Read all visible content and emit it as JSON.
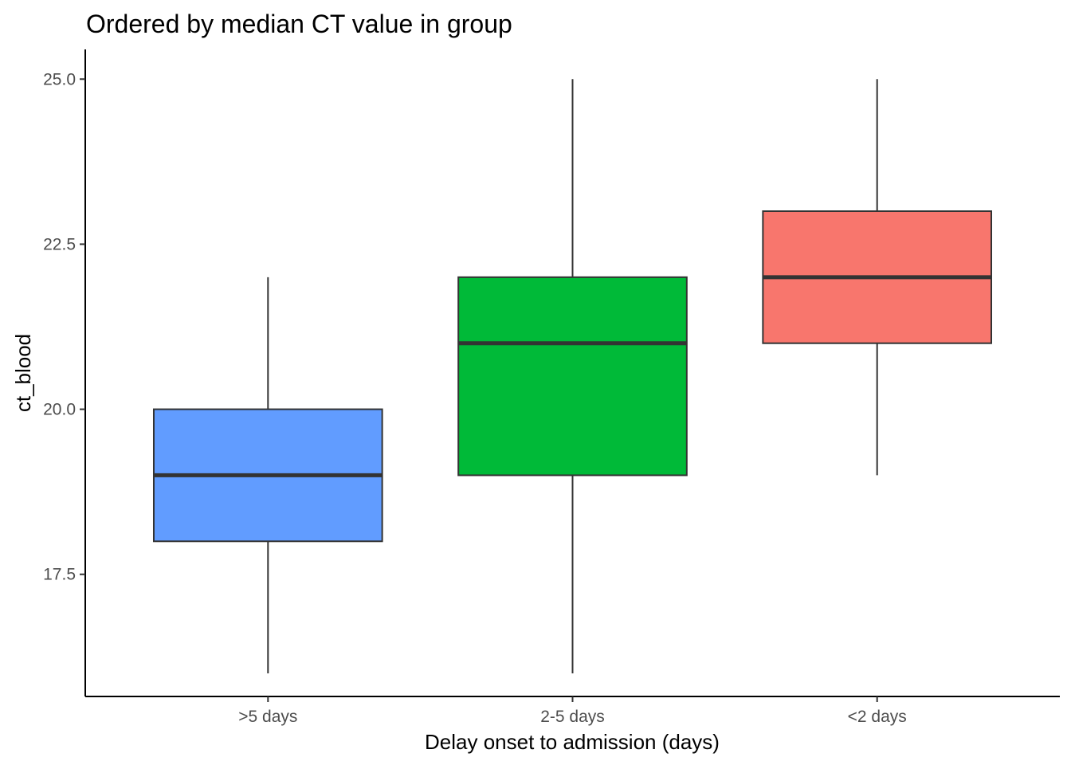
{
  "chart_data": {
    "type": "boxplot",
    "title": "Ordered by median CT value in group",
    "xlabel": "Delay onset to admission (days)",
    "ylabel": "ct_blood",
    "ylim": [
      15.65,
      25.45
    ],
    "yticks": [
      "17.5",
      "20.0",
      "22.5",
      "25.0"
    ],
    "grid": false,
    "legend": "none",
    "categories": [
      ">5 days",
      "2-5 days",
      "<2 days"
    ],
    "boxes": [
      {
        "category": ">5 days",
        "min": 16,
        "q1": 18,
        "median": 19,
        "q3": 20,
        "max": 22,
        "color": "#619CFF"
      },
      {
        "category": "2-5 days",
        "min": 16,
        "q1": 19,
        "median": 21,
        "q3": 22,
        "max": 25,
        "color": "#00BA38"
      },
      {
        "category": "<2 days",
        "min": 19,
        "q1": 21,
        "median": 22,
        "q3": 23,
        "max": 25,
        "color": "#F8766D"
      }
    ]
  }
}
